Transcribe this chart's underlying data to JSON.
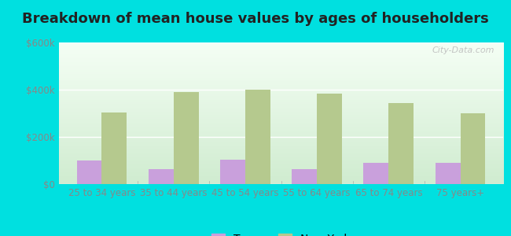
{
  "title": "Breakdown of mean house values by ages of householders",
  "categories": [
    "25 to 34 years",
    "35 to 44 years",
    "45 to 54 years",
    "55 to 64 years",
    "65 to 74 years",
    "75 years+"
  ],
  "tyrone_values": [
    100000,
    65000,
    105000,
    65000,
    90000,
    90000
  ],
  "newyork_values": [
    305000,
    390000,
    400000,
    385000,
    345000,
    300000
  ],
  "tyrone_color": "#c9a0dc",
  "newyork_color": "#b5c98e",
  "ylim": [
    0,
    600000
  ],
  "yticks": [
    0,
    200000,
    400000,
    600000
  ],
  "ytick_labels": [
    "$0",
    "$200k",
    "$400k",
    "$600k"
  ],
  "outer_color": "#00e0e0",
  "title_fontsize": 13,
  "tick_fontsize": 8.5,
  "legend_fontsize": 10,
  "bar_width": 0.35,
  "watermark": "City-Data.com",
  "bg_top": "#f5fff5",
  "bg_bottom": "#d0ecd0"
}
